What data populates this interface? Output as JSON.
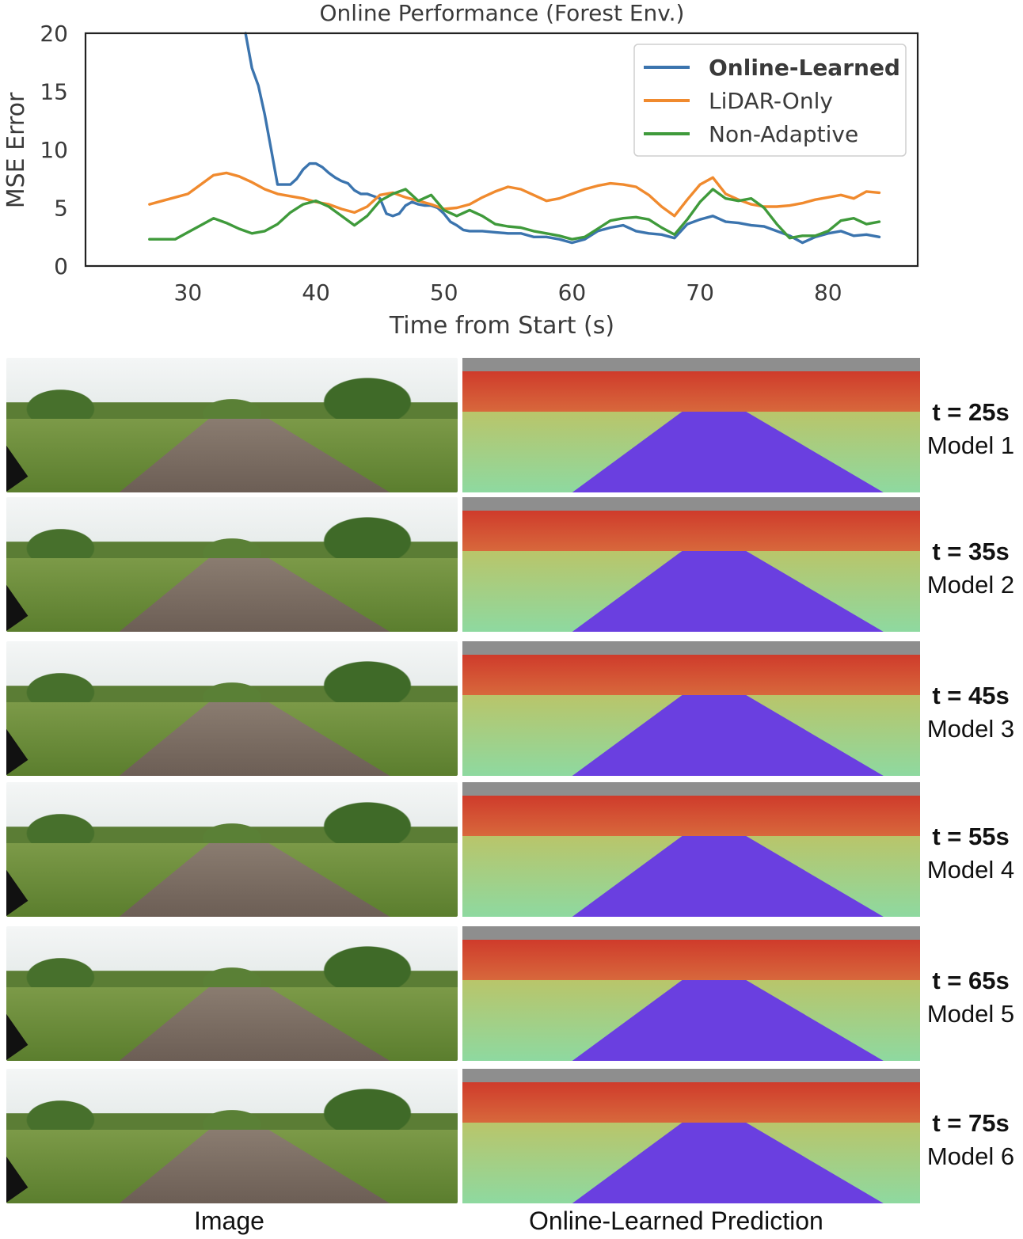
{
  "chart_data": {
    "type": "line",
    "title": "Online Performance (Forest Env.)",
    "xlabel": "Time from Start (s)",
    "ylabel": "MSE Error",
    "xlim": [
      22,
      87
    ],
    "ylim": [
      0,
      20
    ],
    "xticks": [
      30,
      40,
      50,
      60,
      70,
      80
    ],
    "yticks": [
      0,
      5,
      10,
      15,
      20
    ],
    "grid": false,
    "legend_position": "top-right",
    "series": [
      {
        "name": "Online-Learned",
        "color": "#3b74ae",
        "bold_legend": true,
        "x": [
          34.5,
          35.0,
          35.5,
          36.0,
          36.5,
          37.0,
          37.5,
          38.0,
          38.5,
          39.0,
          39.5,
          40.0,
          40.5,
          41.0,
          41.5,
          42.0,
          42.5,
          43.0,
          43.5,
          44.0,
          44.5,
          45.0,
          45.5,
          46.0,
          46.5,
          47.0,
          47.5,
          48.0,
          48.5,
          49.0,
          49.5,
          50.0,
          50.5,
          51.0,
          51.5,
          52.0,
          53.0,
          54.0,
          55.0,
          56.0,
          57.0,
          58.0,
          59.0,
          60.0,
          61.0,
          62.0,
          63.0,
          64.0,
          65.0,
          66.0,
          67.0,
          68.0,
          69.0,
          70.0,
          71.0,
          72.0,
          73.0,
          74.0,
          75.0,
          76.0,
          77.0,
          78.0,
          79.0,
          80.0,
          81.0,
          82.0,
          83.0,
          84.0
        ],
        "y": [
          20.0,
          17.0,
          15.5,
          13.0,
          10.0,
          7.0,
          7.0,
          7.0,
          7.5,
          8.3,
          8.8,
          8.8,
          8.5,
          8.0,
          7.6,
          7.3,
          7.1,
          6.5,
          6.2,
          6.2,
          6.0,
          5.8,
          4.5,
          4.3,
          4.5,
          5.2,
          5.5,
          5.3,
          5.2,
          5.2,
          5.0,
          4.5,
          3.8,
          3.5,
          3.1,
          3.0,
          3.0,
          2.9,
          2.8,
          2.8,
          2.5,
          2.5,
          2.3,
          2.0,
          2.3,
          3.0,
          3.3,
          3.5,
          3.0,
          2.8,
          2.7,
          2.4,
          3.6,
          4.0,
          4.3,
          3.8,
          3.7,
          3.5,
          3.4,
          3.0,
          2.6,
          2.0,
          2.5,
          2.8,
          3.0,
          2.6,
          2.7,
          2.5
        ]
      },
      {
        "name": "LiDAR-Only",
        "color": "#f08a2e",
        "bold_legend": false,
        "x": [
          27,
          28,
          29,
          30,
          31,
          32,
          33,
          34,
          35,
          36,
          37,
          38,
          39,
          40,
          41,
          42,
          43,
          44,
          45,
          46,
          47,
          48,
          49,
          50,
          51,
          52,
          53,
          54,
          55,
          56,
          57,
          58,
          59,
          60,
          61,
          62,
          63,
          64,
          65,
          66,
          67,
          68,
          69,
          70,
          71,
          72,
          73,
          74,
          75,
          76,
          77,
          78,
          79,
          80,
          81,
          82,
          83,
          84
        ],
        "y": [
          5.3,
          5.6,
          5.9,
          6.2,
          7.0,
          7.8,
          8.0,
          7.7,
          7.2,
          6.6,
          6.2,
          6.0,
          5.8,
          5.5,
          5.3,
          4.9,
          4.6,
          5.1,
          6.1,
          6.3,
          5.9,
          5.6,
          5.3,
          4.9,
          5.0,
          5.3,
          5.9,
          6.4,
          6.8,
          6.6,
          6.1,
          5.6,
          5.8,
          6.2,
          6.6,
          6.9,
          7.1,
          7.0,
          6.8,
          6.1,
          5.1,
          4.3,
          5.7,
          7.0,
          7.6,
          6.2,
          5.7,
          5.3,
          5.1,
          5.1,
          5.2,
          5.4,
          5.7,
          5.9,
          6.1,
          5.8,
          6.4,
          6.3
        ]
      },
      {
        "name": "Non-Adaptive",
        "color": "#3f9a3b",
        "bold_legend": false,
        "x": [
          27,
          28,
          29,
          30,
          31,
          32,
          33,
          34,
          35,
          36,
          37,
          38,
          39,
          40,
          41,
          42,
          43,
          44,
          45,
          46,
          47,
          48,
          49,
          50,
          51,
          52,
          53,
          54,
          55,
          56,
          57,
          58,
          59,
          60,
          61,
          62,
          63,
          64,
          65,
          66,
          67,
          68,
          69,
          70,
          71,
          72,
          73,
          74,
          75,
          76,
          77,
          78,
          79,
          80,
          81,
          82,
          83,
          84
        ],
        "y": [
          2.3,
          2.3,
          2.3,
          2.9,
          3.5,
          4.1,
          3.7,
          3.2,
          2.8,
          3.0,
          3.6,
          4.6,
          5.3,
          5.6,
          5.1,
          4.3,
          3.5,
          4.3,
          5.6,
          6.2,
          6.6,
          5.6,
          6.1,
          4.8,
          4.3,
          4.8,
          4.3,
          3.6,
          3.4,
          3.3,
          3.0,
          2.8,
          2.6,
          2.3,
          2.5,
          3.2,
          3.9,
          4.1,
          4.2,
          4.0,
          3.3,
          2.7,
          4.0,
          5.5,
          6.6,
          5.8,
          5.6,
          5.8,
          5.0,
          3.6,
          2.4,
          2.6,
          2.6,
          3.0,
          3.9,
          4.1,
          3.6,
          3.8
        ]
      }
    ]
  },
  "rows": [
    {
      "time": "t = 25s",
      "model": "Model 1"
    },
    {
      "time": "t = 35s",
      "model": "Model 2"
    },
    {
      "time": "t = 45s",
      "model": "Model 3"
    },
    {
      "time": "t = 55s",
      "model": "Model 4"
    },
    {
      "time": "t = 65s",
      "model": "Model 5"
    },
    {
      "time": "t = 75s",
      "model": "Model 6"
    }
  ],
  "captions": {
    "left": "Image",
    "right": "Online-Learned Prediction"
  }
}
